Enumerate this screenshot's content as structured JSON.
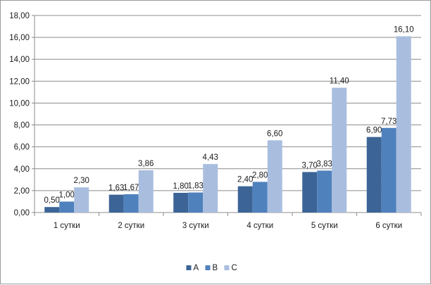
{
  "chart_data": {
    "type": "bar",
    "categories": [
      "1 сутки",
      "2 сутки",
      "3 сутки",
      "4 сутки",
      "5 сутки",
      "6 сутки"
    ],
    "series": [
      {
        "name": "A",
        "color": "#3c6496",
        "values": [
          0.5,
          1.63,
          1.8,
          2.4,
          3.7,
          6.9
        ],
        "labels": [
          "0,50",
          "1,63",
          "1,80",
          "2,40",
          "3,70",
          "6,90"
        ]
      },
      {
        "name": "B",
        "color": "#4f81bd",
        "values": [
          1.0,
          1.67,
          1.83,
          2.8,
          3.83,
          7.73
        ],
        "labels": [
          "1,00",
          "1,67",
          "1,83",
          "2,80",
          "3,83",
          "7,73"
        ]
      },
      {
        "name": "C",
        "color": "#a9bedf",
        "values": [
          2.3,
          3.86,
          4.43,
          6.6,
          11.4,
          16.1
        ],
        "labels": [
          "2,30",
          "3,86",
          "4,43",
          "6,60",
          "11,40",
          "16,10"
        ]
      }
    ],
    "ylim": [
      0,
      18
    ],
    "y_ticks": [
      "0,00",
      "2,00",
      "4,00",
      "6,00",
      "8,00",
      "10,00",
      "12,00",
      "14,00",
      "16,00",
      "18,00"
    ],
    "grid": true,
    "legend_position": "bottom"
  }
}
